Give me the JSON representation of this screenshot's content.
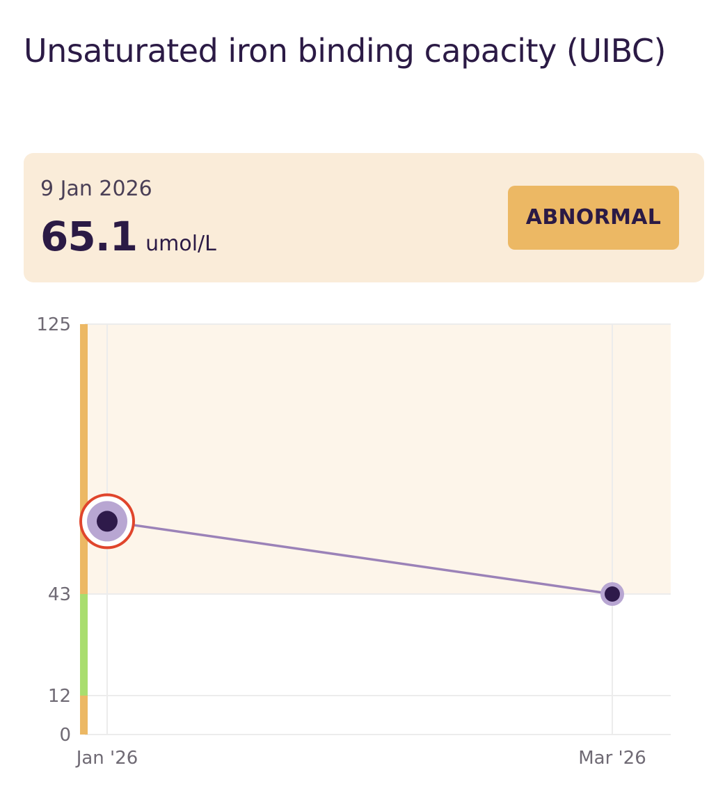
{
  "header": {
    "title": "Unsaturated iron binding capacity (UIBC)"
  },
  "latest_result": {
    "date": "9 Jan 2026",
    "value": "65.1",
    "unit": "umol/L",
    "status": "ABNORMAL"
  },
  "colors": {
    "title_text": "#2b1a45",
    "card_background": "#faecd9",
    "badge_background": "#ecb864",
    "abnormal_band": "#ecb864",
    "normal_band": "#a9dd6e",
    "abnormal_region_fill": "#fdf5ea",
    "line": "#9b82b8",
    "point_fill": "#2e1a4a",
    "point_halo": "#b8a6d2",
    "highlight_ring": "#e0452c",
    "grid": "#ececec"
  },
  "chart_data": {
    "type": "line",
    "x": [
      "Jan '26",
      "Mar '26"
    ],
    "series": [
      {
        "values": [
          65.1,
          43
        ]
      }
    ],
    "y_ticks": [
      0,
      12,
      43,
      125
    ],
    "ylim": [
      0,
      125
    ],
    "reference_range": [
      12,
      43
    ],
    "highlighted_index": 0,
    "grid": true
  }
}
